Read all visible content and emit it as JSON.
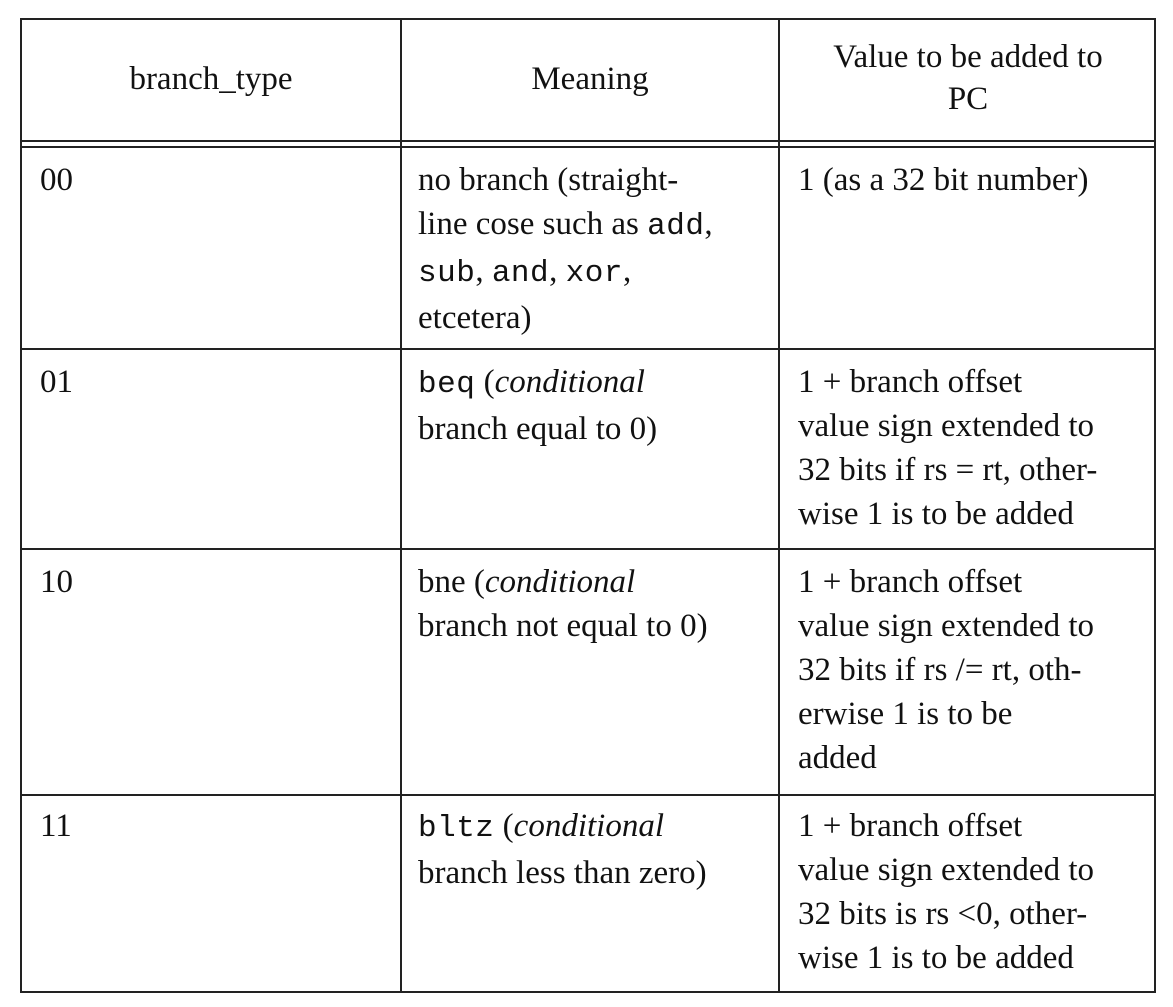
{
  "table": {
    "headers": {
      "col1": "branch_type",
      "col2": "Meaning",
      "col3_line1": "Value to be added to",
      "col3_line2": "PC"
    },
    "rows": [
      {
        "code": "00",
        "meaning": {
          "l1": "no branch (straight-",
          "l2_text": "line cose such as ",
          "l2_code": "add",
          "l2_end": ",",
          "l3_code1": "sub",
          "l3_sep1": ", ",
          "l3_code2": "and",
          "l3_sep2": ", ",
          "l3_code3": "xor",
          "l3_end": ",",
          "l4": "etcetera)"
        },
        "value": [
          "1 (as a 32 bit number)"
        ]
      },
      {
        "code": "01",
        "meaning": {
          "code": "beq",
          "l1_open": " (",
          "l1_ital": "conditional",
          "l2": "branch equal to 0)"
        },
        "value": [
          "1 + branch offset",
          "value sign extended to",
          "32 bits if rs = rt, other-",
          "wise 1 is to be added"
        ]
      },
      {
        "code": "10",
        "meaning": {
          "l1_pre": "bne (",
          "l1_ital": "conditional",
          "l2": "branch not equal to 0)"
        },
        "value": [
          "1 + branch offset",
          "value sign extended to",
          "32 bits if rs /= rt, oth-",
          "erwise 1 is to be",
          "added"
        ]
      },
      {
        "code": "11",
        "meaning": {
          "code": "bltz",
          "l1_open": " (",
          "l1_ital": "conditional",
          "l2": "branch less than zero)"
        },
        "value": [
          "1 + branch offset",
          "value sign extended to",
          "32 bits is rs <0, other-",
          "wise 1 is to be added"
        ]
      }
    ]
  }
}
